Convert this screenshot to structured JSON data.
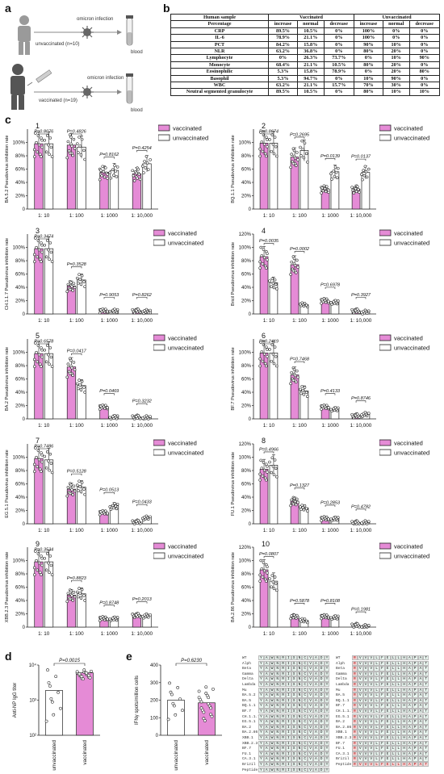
{
  "figure": {
    "panel_labels": [
      "a",
      "b",
      "c",
      "d",
      "e"
    ],
    "colors": {
      "vaccinated": "#e58bd6",
      "unvaccinated": "#ffffff",
      "outline": "#222222"
    }
  },
  "panel_a": {
    "unvaccinated_label": "unvaccinated (n=10)",
    "vaccinated_label": "vaccinated (n=19)",
    "infection_label_top": "omicron infection",
    "infection_label_bottom": "omicron infection",
    "blood_label_top": "blood",
    "blood_label_bottom": "blood",
    "icons": [
      "person-icon",
      "virus-icon",
      "blood-tube-icon",
      "syringe-icon"
    ]
  },
  "panel_b": {
    "header_sample": "Human sample",
    "header_vaccinated": "Vaccinated",
    "header_unvaccinated": "Unvaccinated",
    "subheader": [
      "Percentage",
      "increase",
      "normal",
      "decrease",
      "increase",
      "normal",
      "decrease"
    ],
    "rows": [
      [
        "CRP",
        "89.5%",
        "10.5%",
        "0%",
        "100%",
        "0%",
        "0%"
      ],
      [
        "IL-6",
        "78.9%",
        "21.1%",
        "0%",
        "100%",
        "0%",
        "0%"
      ],
      [
        "PCT",
        "84.2%",
        "15.8%",
        "0%",
        "90%",
        "10%",
        "0%"
      ],
      [
        "NLR",
        "63.2%",
        "36.8%",
        "0%",
        "80%",
        "20%",
        "0%"
      ],
      [
        "Lymphocyte",
        "0%",
        "26.3%",
        "73.7%",
        "0%",
        "10%",
        "90%"
      ],
      [
        "Monocyte",
        "68.4%",
        "21.1%",
        "10.5%",
        "80%",
        "20%",
        "0%"
      ],
      [
        "Eosinophilic",
        "5.3%",
        "15.8%",
        "78.9%",
        "0%",
        "20%",
        "80%"
      ],
      [
        "Basophil",
        "5.3%",
        "94.7%",
        "0%",
        "10%",
        "90%",
        "0%"
      ],
      [
        "WBC",
        "63.2%",
        "21.1%",
        "15.7%",
        "70%",
        "30%",
        "0%"
      ],
      [
        "Neutral segmented granulocyte",
        "89.5%",
        "10.5%",
        "0%",
        "80%",
        "10%",
        "10%"
      ]
    ]
  },
  "legend": {
    "vaccinated": "vaccinated",
    "unvaccinated": "unvaccinated"
  },
  "chart_data": [
    {
      "type": "bar",
      "number": "1",
      "ylabel": "BA.5.2 Pseudovirus inhibition rate",
      "categories": [
        "1: 10",
        "1: 100",
        "1: 1000",
        "1: 10,000"
      ],
      "yticks": [
        "0",
        "20%",
        "40%",
        "60%",
        "80%",
        "100%"
      ],
      "ylim": [
        0,
        120
      ],
      "series": [
        {
          "name": "vaccinated",
          "values": [
            98,
            96,
            55,
            53
          ]
        },
        {
          "name": "unvaccinated",
          "values": [
            98,
            93,
            58,
            68
          ]
        }
      ],
      "pvalues": [
        "P=0.8076",
        "P=0.4826",
        "P=0.8162",
        "P=0.4254"
      ]
    },
    {
      "type": "bar",
      "number": "2",
      "ylabel": "BQ.1.1 Pseudovirus inhibition rate",
      "categories": [
        "1: 10",
        "1: 100",
        "1: 1000",
        "1: 10,000"
      ],
      "yticks": [
        "0",
        "20%",
        "40%",
        "60%",
        "80%",
        "100%"
      ],
      "ylim": [
        0,
        120
      ],
      "series": [
        {
          "name": "vaccinated",
          "values": [
            99,
            78,
            30,
            30
          ]
        },
        {
          "name": "unvaccinated",
          "values": [
            99,
            88,
            56,
            55
          ]
        }
      ],
      "pvalues": [
        "P=0.8674",
        "P=0.2695",
        "P=0.0139",
        "P=0.0137"
      ]
    },
    {
      "type": "bar",
      "number": "3",
      "ylabel": "CH.1.1.7 Pseudovirus inhibition rate",
      "categories": [
        "1: 10",
        "1: 100",
        "1: 1000",
        "1: 10,000"
      ],
      "yticks": [
        "0",
        "20%",
        "40%",
        "60%",
        "80%",
        "100%"
      ],
      "ylim": [
        0,
        120
      ],
      "series": [
        {
          "name": "vaccinated",
          "values": [
            98,
            42,
            5,
            5
          ]
        },
        {
          "name": "unvaccinated",
          "values": [
            98,
            51,
            5,
            4
          ]
        }
      ],
      "pvalues": [
        "P=0.3474",
        "P=0.3528",
        "P=0.9053",
        "P=0.8262"
      ]
    },
    {
      "type": "bar",
      "number": "4",
      "ylabel": "Bricil Pseudovirus inhibition rate",
      "categories": [
        "1: 10",
        "1: 100",
        "1: 1000",
        "1: 10,000"
      ],
      "yticks": [
        "0",
        "20%",
        "40%",
        "60%",
        "80%",
        "100%",
        "120%"
      ],
      "ylim": [
        0,
        120
      ],
      "series": [
        {
          "name": "vaccinated",
          "values": [
            86,
            74,
            20,
            5
          ]
        },
        {
          "name": "unvaccinated",
          "values": [
            47,
            14,
            18,
            3
          ]
        }
      ],
      "pvalues": [
        "P=0.0035",
        "P=0.0002",
        "P=0.6978",
        "P=0.3927"
      ]
    },
    {
      "type": "bar",
      "number": "5",
      "ylabel": "BA.2 Pseudovirus inhibition rate",
      "categories": [
        "1: 10",
        "1: 100",
        "1: 1000",
        "1: 10,000"
      ],
      "yticks": [
        "0",
        "20%",
        "40%",
        "60%",
        "80%",
        "100%"
      ],
      "ylim": [
        0,
        120
      ],
      "series": [
        {
          "name": "vaccinated",
          "values": [
            98,
            78,
            18,
            3
          ]
        },
        {
          "name": "unvaccinated",
          "values": [
            98,
            50,
            3,
            2
          ]
        }
      ],
      "pvalues": [
        "P=0.6578",
        "P=0.0417",
        "P=0.0469",
        "P=0.3232"
      ]
    },
    {
      "type": "bar",
      "number": "6",
      "ylabel": "BF.7 Pseudovirus inhibition rate",
      "categories": [
        "1: 10",
        "1: 100",
        "1: 1000",
        "1: 10,000"
      ],
      "yticks": [
        "0",
        "20%",
        "40%",
        "60%",
        "80%",
        "100%"
      ],
      "ylim": [
        0,
        120
      ],
      "series": [
        {
          "name": "vaccinated",
          "values": [
            99,
            66,
            18,
            5
          ]
        },
        {
          "name": "unvaccinated",
          "values": [
            99,
            42,
            15,
            7
          ]
        }
      ],
      "pvalues": [
        "P=0.2419",
        "P=0.7468",
        "P=0.4133",
        "P=0.8746"
      ]
    },
    {
      "type": "bar",
      "number": "7",
      "ylabel": "EG.5.1 Pseudovirus inhibition rate",
      "categories": [
        "1: 10",
        "1: 100",
        "1: 1000",
        "1: 10,000"
      ],
      "yticks": [
        "0",
        "20%",
        "40%",
        "60%",
        "80%",
        "100%"
      ],
      "ylim": [
        0,
        120
      ],
      "series": [
        {
          "name": "vaccinated",
          "values": [
            98,
            52,
            17,
            3
          ]
        },
        {
          "name": "unvaccinated",
          "values": [
            96,
            55,
            27,
            9
          ]
        }
      ],
      "pvalues": [
        "P=0.7486",
        "P=0.5128",
        "P=0.0513",
        "P=0.0433"
      ]
    },
    {
      "type": "bar",
      "number": "8",
      "ylabel": "FU.1 Pseudovirus inhibition rate",
      "categories": [
        "1: 10",
        "1: 100",
        "1: 1000",
        "1: 10,000"
      ],
      "yticks": [
        "0",
        "20%",
        "40%",
        "60%",
        "80%",
        "100%",
        "120%"
      ],
      "ylim": [
        0,
        120
      ],
      "series": [
        {
          "name": "vaccinated",
          "values": [
            82,
            34,
            8,
            2
          ]
        },
        {
          "name": "unvaccinated",
          "values": [
            88,
            24,
            8,
            2
          ]
        }
      ],
      "pvalues": [
        "P=0.4966",
        "P=0.1327",
        "P=0.2853",
        "P=0.4782"
      ]
    },
    {
      "type": "bar",
      "number": "9",
      "ylabel": "XBB.2.3 Pseudovirus inhibition rate",
      "categories": [
        "1: 10",
        "1: 100",
        "1: 1000",
        "1: 10,000"
      ],
      "yticks": [
        "0",
        "20%",
        "40%",
        "60%",
        "80%",
        "100%"
      ],
      "ylim": [
        0,
        120
      ],
      "series": [
        {
          "name": "vaccinated",
          "values": [
            98,
            48,
            13,
            18
          ]
        },
        {
          "name": "unvaccinated",
          "values": [
            98,
            50,
            13,
            17
          ]
        }
      ],
      "pvalues": [
        "P=0.3534",
        "P=0.8823",
        "P=0.8748",
        "P=0.2013"
      ]
    },
    {
      "type": "bar",
      "number": "10",
      "ylabel": "BA.2.86 Pseudovirus inhibition rate",
      "categories": [
        "1: 10",
        "1: 100",
        "1: 1000",
        "1: 10,000"
      ],
      "yticks": [
        "0",
        "20%",
        "40%",
        "60%",
        "80%",
        "100%",
        "120%"
      ],
      "ylim": [
        0,
        120
      ],
      "series": [
        {
          "name": "vaccinated",
          "values": [
            86,
            16,
            16,
            3
          ]
        },
        {
          "name": "unvaccinated",
          "values": [
            69,
            10,
            15,
            1
          ]
        }
      ],
      "pvalues": [
        "P=0.0807",
        "P=0.5878",
        "P=0.8108",
        "P=0.1981"
      ]
    },
    {
      "type": "bar",
      "number": "d",
      "ylabel": "Anti-NP IgG titer",
      "yscale": "log",
      "categories": [
        "unvaccinated",
        "vaccinated"
      ],
      "yticks": [
        "10²",
        "10³",
        "10⁴"
      ],
      "ylim": [
        100,
        10000
      ],
      "values": [
        1900,
        6000
      ],
      "pvalues": [
        "P=0.0015"
      ]
    },
    {
      "type": "bar",
      "number": "e",
      "ylabel": "IFNγ spots/million cells",
      "categories": [
        "unvaccinated",
        "vaccinated"
      ],
      "yticks": [
        "0",
        "100",
        "200",
        "300",
        "400"
      ],
      "ylim": [
        0,
        400
      ],
      "values": [
        200,
        185
      ],
      "pvalues": [
        "P=0.6230"
      ]
    }
  ],
  "sequence_panel": {
    "names_left": [
      "WT",
      "Alph",
      "Beta",
      "Gamma",
      "Delta",
      "Lambda",
      "Mu",
      "BA.5.2",
      "BA.5",
      "BQ.1.1",
      "BF.7",
      "CH.1.1.7",
      "EG.5.1",
      "BA.2",
      "BA.2.86",
      "XBB.1",
      "XBB.2.3",
      "BF.7",
      "FU.1",
      "CA.3.1",
      "Brizil",
      "Peptide"
    ],
    "residues_left": [
      "Y",
      "A",
      "W",
      "N",
      "R",
      "I",
      "S",
      "N",
      "C",
      "V",
      "A",
      "D",
      "Y"
    ],
    "names_right": [
      "WT",
      "Alph",
      "Beta",
      "Gamma",
      "Delta",
      "Lambda",
      "Mu",
      "BA.5",
      "BQ.1.1",
      "BF.7",
      "CH.1.1.7",
      "EG.5.1",
      "BA.2",
      "BA.2.86",
      "XBB.1",
      "XBB.2.3",
      "BF.7",
      "FU.1",
      "CA.3.1",
      "Brizil",
      "Peptide"
    ],
    "residues_right": [
      "R",
      "V",
      "V",
      "V",
      "L",
      "F",
      "E",
      "L",
      "L",
      "H",
      "A",
      "P",
      "A",
      "T"
    ]
  }
}
